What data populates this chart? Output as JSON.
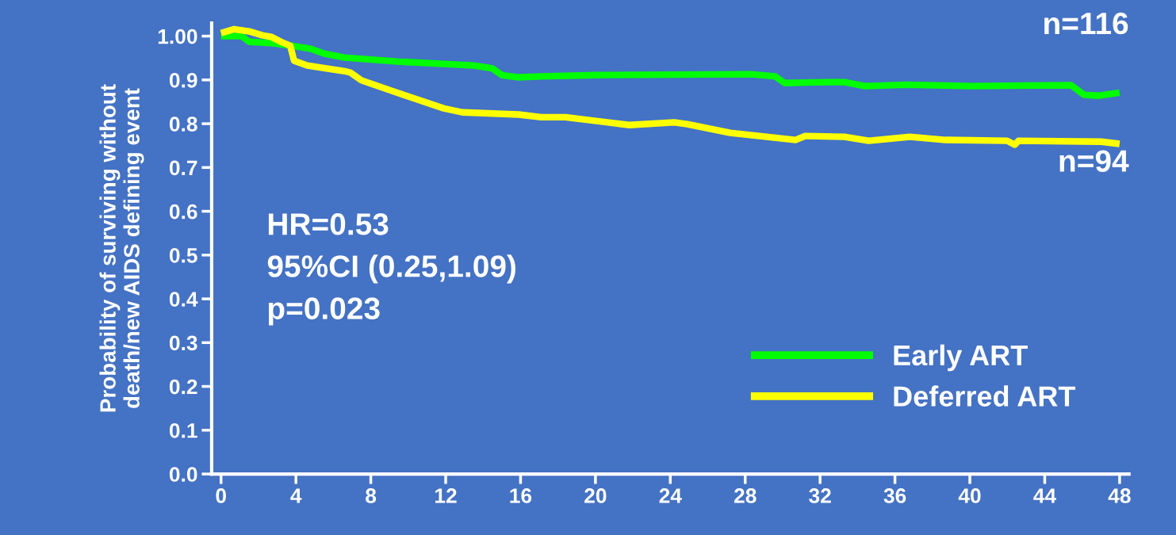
{
  "chart_data": {
    "type": "line",
    "ylabel": "Probability of surviving without\ndeath/new AIDS defining event",
    "xlim": [
      -0.5,
      48.5
    ],
    "xticks": [
      0,
      4,
      8,
      12,
      16,
      20,
      24,
      28,
      32,
      36,
      40,
      44,
      48
    ],
    "ylim": [
      0,
      1.03
    ],
    "yticks": [
      {
        "value": 1.0,
        "label": "1.00"
      },
      {
        "value": 0.9,
        "label": "0.9"
      },
      {
        "value": 0.8,
        "label": "0.8"
      },
      {
        "value": 0.7,
        "label": "0.7"
      },
      {
        "value": 0.6,
        "label": "0.6"
      },
      {
        "value": 0.5,
        "label": "0.5"
      },
      {
        "value": 0.4,
        "label": "0.4"
      },
      {
        "value": 0.3,
        "label": "0.3"
      },
      {
        "value": 0.2,
        "label": "0.2"
      },
      {
        "value": 0.1,
        "label": "0.1"
      },
      {
        "value": 0.0,
        "label": "0.0"
      }
    ],
    "grid": false,
    "legend": "bottom right",
    "marker": "none",
    "line_style": "solid",
    "annotations": [
      "n=116",
      "n=94",
      "HR=0.53\n95%CI (0.25,1.09)\np=0.023"
    ],
    "series": [
      {
        "name": "Early ART",
        "color": "#00ff00",
        "x": [
          0,
          1.1,
          1.5,
          2.7,
          3.8,
          4.8,
          5.5,
          6.6,
          9.4,
          13.5,
          14.5,
          15.0,
          15.9,
          17.1,
          20,
          28.3,
          29.6,
          30.1,
          32.5,
          33.3,
          34.4,
          36.6,
          40.1,
          45.4,
          46.1,
          46.9,
          48
        ],
        "values": [
          1.0,
          1.0,
          0.987,
          0.984,
          0.978,
          0.971,
          0.96,
          0.951,
          0.942,
          0.933,
          0.926,
          0.911,
          0.906,
          0.908,
          0.911,
          0.913,
          0.908,
          0.893,
          0.895,
          0.895,
          0.886,
          0.889,
          0.886,
          0.888,
          0.866,
          0.864,
          0.871
        ]
      },
      {
        "name": "Deferred ART",
        "color": "#ffff00",
        "x": [
          0,
          0.7,
          1.5,
          2.2,
          2.7,
          3.2,
          3.7,
          3.9,
          4.6,
          6.6,
          6.9,
          7.5,
          9.4,
          11.9,
          12.9,
          15.9,
          17.1,
          18.4,
          21.8,
          24.2,
          24.9,
          27.2,
          30.7,
          31.2,
          33.3,
          34.6,
          36.8,
          38.7,
          42,
          42.4,
          42.6,
          47,
          48
        ],
        "values": [
          1.007,
          1.016,
          1.011,
          1.002,
          0.998,
          0.987,
          0.978,
          0.944,
          0.933,
          0.92,
          0.917,
          0.899,
          0.871,
          0.835,
          0.826,
          0.821,
          0.815,
          0.815,
          0.797,
          0.803,
          0.799,
          0.779,
          0.763,
          0.772,
          0.77,
          0.761,
          0.77,
          0.763,
          0.761,
          0.752,
          0.761,
          0.759,
          0.754
        ]
      }
    ]
  }
}
